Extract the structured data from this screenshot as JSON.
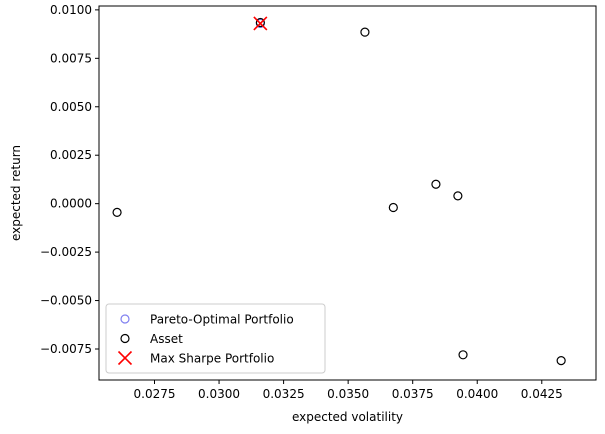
{
  "chart_data": {
    "type": "scatter",
    "title": "",
    "xlabel": "expected volatility",
    "ylabel": "expected return",
    "xlim": [
      0.02535,
      0.0446
    ],
    "ylim": [
      -0.0091,
      0.0102
    ],
    "xticks": [
      {
        "value": 0.0275,
        "label": "0.0275"
      },
      {
        "value": 0.03,
        "label": "0.0300"
      },
      {
        "value": 0.0325,
        "label": "0.0325"
      },
      {
        "value": 0.035,
        "label": "0.0350"
      },
      {
        "value": 0.0375,
        "label": "0.0375"
      },
      {
        "value": 0.04,
        "label": "0.0400"
      },
      {
        "value": 0.0425,
        "label": "0.0425"
      }
    ],
    "yticks": [
      {
        "value": 0.01,
        "label": "0.0100"
      },
      {
        "value": 0.0075,
        "label": "0.0075"
      },
      {
        "value": 0.005,
        "label": "0.0050"
      },
      {
        "value": 0.0025,
        "label": "0.0025"
      },
      {
        "value": 0.0,
        "label": "0.0000"
      },
      {
        "value": -0.0025,
        "label": "−0.0025"
      },
      {
        "value": -0.005,
        "label": "−0.0050"
      },
      {
        "value": -0.0075,
        "label": "−0.0075"
      }
    ],
    "grid": false,
    "legend": "lower-left",
    "series": [
      {
        "name": "Pareto-Optimal Portfolio",
        "marker": "circle-open",
        "color": "#8080f0",
        "points": [
          {
            "x": 0.0316,
            "y": 0.0093
          }
        ]
      },
      {
        "name": "Asset",
        "marker": "circle-open",
        "color": "#000000",
        "points": [
          {
            "x": 0.02605,
            "y": -0.00045
          },
          {
            "x": 0.0316,
            "y": 0.00935
          },
          {
            "x": 0.03565,
            "y": 0.00885
          },
          {
            "x": 0.03675,
            "y": -0.0002
          },
          {
            "x": 0.0384,
            "y": 0.001
          },
          {
            "x": 0.03925,
            "y": 0.0004
          },
          {
            "x": 0.03945,
            "y": -0.0078
          },
          {
            "x": 0.04325,
            "y": -0.0081
          }
        ]
      },
      {
        "name": "Max Sharpe Portfolio",
        "marker": "x",
        "color": "#ff0000",
        "points": [
          {
            "x": 0.0316,
            "y": 0.0093
          }
        ]
      }
    ]
  }
}
